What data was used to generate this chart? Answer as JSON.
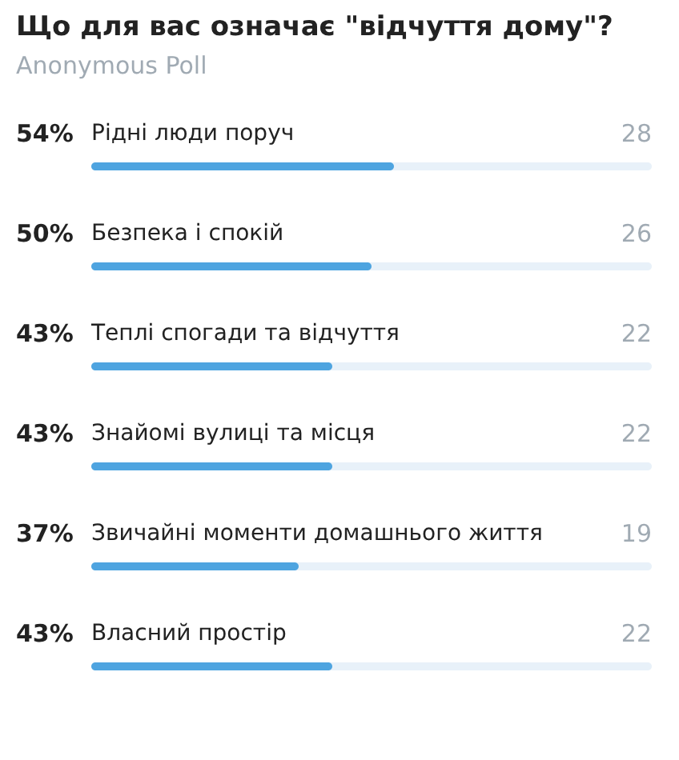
{
  "chart_data": {
    "type": "bar",
    "orientation": "horizontal",
    "title": "Що для вас означає \"відчуття дому\"?",
    "subtitle": "Anonymous Poll",
    "categories": [
      "Рідні люди поруч",
      "Безпека і спокій",
      "Теплі спогади та відчуття",
      "Знайомі вулиці та місця",
      "Звичайні моменти домашнього життя",
      "Власний простір"
    ],
    "values": [
      54,
      50,
      43,
      43,
      37,
      43
    ],
    "color": "#4ea4e0",
    "xlim": [
      0,
      100
    ],
    "value_labels": [
      "54%",
      "50%",
      "43%",
      "43%",
      "37%",
      "43%"
    ],
    "annotations": [
      "28",
      "26",
      "22",
      "22",
      "19",
      "22"
    ]
  }
}
